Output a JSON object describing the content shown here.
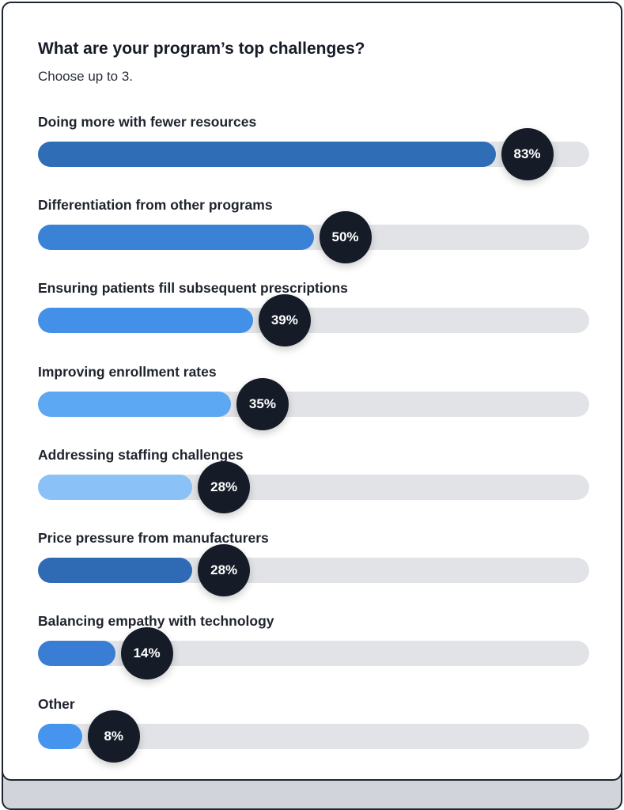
{
  "chart_data": {
    "type": "bar",
    "orientation": "horizontal",
    "title": "What are your program’s top challenges?",
    "subtitle": "Choose up to 3.",
    "xlim": [
      0,
      100
    ],
    "grid": false,
    "categories": [
      "Doing more with fewer resources",
      "Differentiation from other programs",
      "Ensuring patients fill subsequent prescriptions",
      "Improving enrollment rates",
      "Addressing staffing challenges",
      "Price pressure from manufacturers",
      "Balancing empathy with technology",
      "Other"
    ],
    "values": [
      83,
      50,
      39,
      35,
      28,
      28,
      14,
      8
    ],
    "data_labels": [
      "83%",
      "50%",
      "39%",
      "35%",
      "28%",
      "28%",
      "14%",
      "8%"
    ],
    "colors": [
      "#2F6DB7",
      "#3A82D6",
      "#4390E8",
      "#5CA8F2",
      "#8AC2F7",
      "#2F6BB5",
      "#3A7DD4",
      "#4595EE"
    ],
    "track_color": "#E2E3E7",
    "label_bubble_color": "#161B28"
  }
}
